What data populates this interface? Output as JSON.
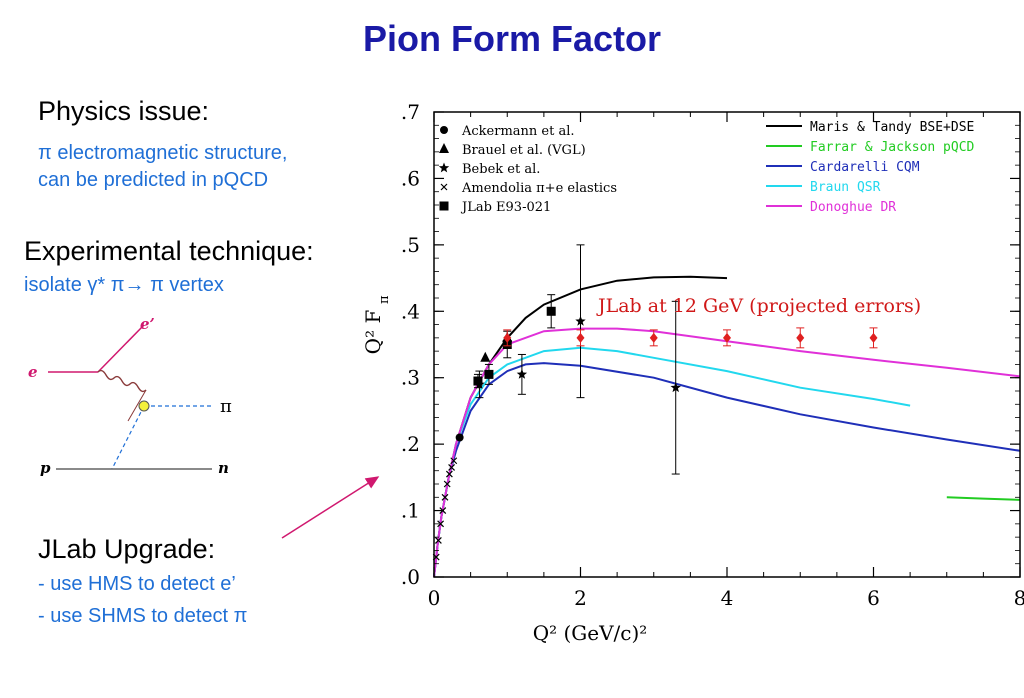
{
  "slide": {
    "title": "Pion Form Factor",
    "physics": {
      "heading": "Physics issue:",
      "lines": [
        "π electromagnetic structure,",
        "can be predicted in pQCD"
      ]
    },
    "technique": {
      "heading": "Experimental technique:",
      "line": "isolate γ* π→ π vertex"
    },
    "upgrade": {
      "heading": "JLab Upgrade:",
      "lines": [
        "- use HMS to detect e’",
        "- use SHMS to detect π"
      ]
    },
    "diagram": {
      "e_label": "e",
      "e_prime_label": "e’",
      "pi_label": "π",
      "p_label": "p",
      "n_label": "n"
    }
  },
  "chart_data": {
    "type": "scatter",
    "title": "",
    "xlabel": "Q² (GeV/c)²",
    "ylabel": "Q² F",
    "ylabel_sub": "π",
    "xlim": [
      0,
      8
    ],
    "ylim": [
      0,
      0.7
    ],
    "x_ticks": [
      0,
      2,
      4,
      6,
      8
    ],
    "x_tick_labels": [
      "0",
      "2",
      "4",
      "6",
      "8"
    ],
    "y_ticks": [
      0,
      0.1,
      0.2,
      0.3,
      0.4,
      0.5,
      0.6,
      0.7
    ],
    "y_tick_labels": [
      ".0",
      ".1",
      ".2",
      ".3",
      ".4",
      ".5",
      ".6",
      ".7"
    ],
    "annotation": "JLab at 12 GeV (projected errors)",
    "annotation_color": "#d01818",
    "legend_placement": "top-left and top-right",
    "point_series": [
      {
        "name": "Ackermann et al.",
        "marker": "circle",
        "points": [
          {
            "x": 0.35,
            "y": 0.21
          }
        ]
      },
      {
        "name": "Brauel et al. (VGL)",
        "marker": "triangle",
        "points": [
          {
            "x": 0.7,
            "y": 0.33
          },
          {
            "x": 1.0,
            "y": 0.36
          }
        ]
      },
      {
        "name": "Bebek et al.",
        "marker": "star",
        "points": [
          {
            "x": 0.62,
            "y": 0.29,
            "err": 0.02
          },
          {
            "x": 1.2,
            "y": 0.305,
            "err": 0.03
          },
          {
            "x": 2.0,
            "y": 0.385,
            "err": 0.115
          },
          {
            "x": 3.3,
            "y": 0.285,
            "err": 0.13
          }
        ]
      },
      {
        "name": "Amendolia π+e elastics",
        "marker": "cross",
        "points": [
          {
            "x": 0.03,
            "y": 0.03
          },
          {
            "x": 0.06,
            "y": 0.055
          },
          {
            "x": 0.09,
            "y": 0.08
          },
          {
            "x": 0.12,
            "y": 0.1
          },
          {
            "x": 0.15,
            "y": 0.12
          },
          {
            "x": 0.18,
            "y": 0.14
          },
          {
            "x": 0.21,
            "y": 0.155
          },
          {
            "x": 0.24,
            "y": 0.165
          },
          {
            "x": 0.27,
            "y": 0.175
          }
        ]
      },
      {
        "name": "JLab E93-021",
        "marker": "square",
        "points": [
          {
            "x": 0.6,
            "y": 0.295,
            "err": 0.01
          },
          {
            "x": 0.75,
            "y": 0.305,
            "err": 0.015
          },
          {
            "x": 1.0,
            "y": 0.35,
            "err": 0.02
          },
          {
            "x": 1.6,
            "y": 0.4,
            "err": 0.025
          }
        ]
      },
      {
        "name": "",
        "marker": "diamond",
        "color": "#e02020",
        "points": [
          {
            "x": 1.0,
            "y": 0.36,
            "err": 0.012
          },
          {
            "x": 2.0,
            "y": 0.36,
            "err": 0.012
          },
          {
            "x": 3.0,
            "y": 0.36,
            "err": 0.012
          },
          {
            "x": 4.0,
            "y": 0.36,
            "err": 0.012
          },
          {
            "x": 5.0,
            "y": 0.36,
            "err": 0.015
          },
          {
            "x": 6.0,
            "y": 0.36,
            "err": 0.015
          }
        ]
      }
    ],
    "curves": [
      {
        "name": "Maris & Tandy BSE+DSE",
        "color": "#000000",
        "x": [
          0,
          0.05,
          0.1,
          0.2,
          0.3,
          0.5,
          0.75,
          1.0,
          1.25,
          1.5,
          2.0,
          2.5,
          3.0,
          3.5,
          4.0
        ],
        "y": [
          0,
          0.05,
          0.09,
          0.15,
          0.2,
          0.27,
          0.32,
          0.36,
          0.39,
          0.41,
          0.433,
          0.446,
          0.451,
          0.452,
          0.45
        ]
      },
      {
        "name": "Farrar & Jackson pQCD",
        "color": "#22cc22",
        "x": [
          7.0,
          7.5,
          8.0
        ],
        "y": [
          0.12,
          0.118,
          0.116
        ]
      },
      {
        "name": "Cardarelli CQM",
        "color": "#1f2fb8",
        "x": [
          0,
          0.05,
          0.1,
          0.2,
          0.3,
          0.5,
          0.75,
          1.0,
          1.25,
          1.5,
          2.0,
          3.0,
          4.0,
          5.0,
          6.0,
          7.0,
          8.0
        ],
        "y": [
          0,
          0.05,
          0.09,
          0.15,
          0.19,
          0.25,
          0.29,
          0.31,
          0.32,
          0.322,
          0.318,
          0.3,
          0.27,
          0.245,
          0.225,
          0.207,
          0.19
        ]
      },
      {
        "name": "Braun QSR",
        "color": "#22d8ee",
        "x": [
          0,
          0.05,
          0.1,
          0.2,
          0.3,
          0.5,
          0.75,
          1.0,
          1.5,
          2.0,
          2.5,
          3.0,
          4.0,
          5.0,
          6.0,
          6.5
        ],
        "y": [
          0,
          0.05,
          0.09,
          0.15,
          0.2,
          0.26,
          0.3,
          0.32,
          0.34,
          0.345,
          0.34,
          0.33,
          0.31,
          0.285,
          0.268,
          0.258
        ]
      },
      {
        "name": "Donoghue DR",
        "color": "#e030d8",
        "x": [
          0,
          0.05,
          0.1,
          0.2,
          0.3,
          0.5,
          0.75,
          1.0,
          1.5,
          2.0,
          2.5,
          3.0,
          4.0,
          5.0,
          6.0,
          7.0,
          8.0
        ],
        "y": [
          0,
          0.05,
          0.09,
          0.15,
          0.2,
          0.27,
          0.32,
          0.35,
          0.37,
          0.374,
          0.374,
          0.37,
          0.355,
          0.34,
          0.327,
          0.315,
          0.302
        ]
      }
    ]
  }
}
